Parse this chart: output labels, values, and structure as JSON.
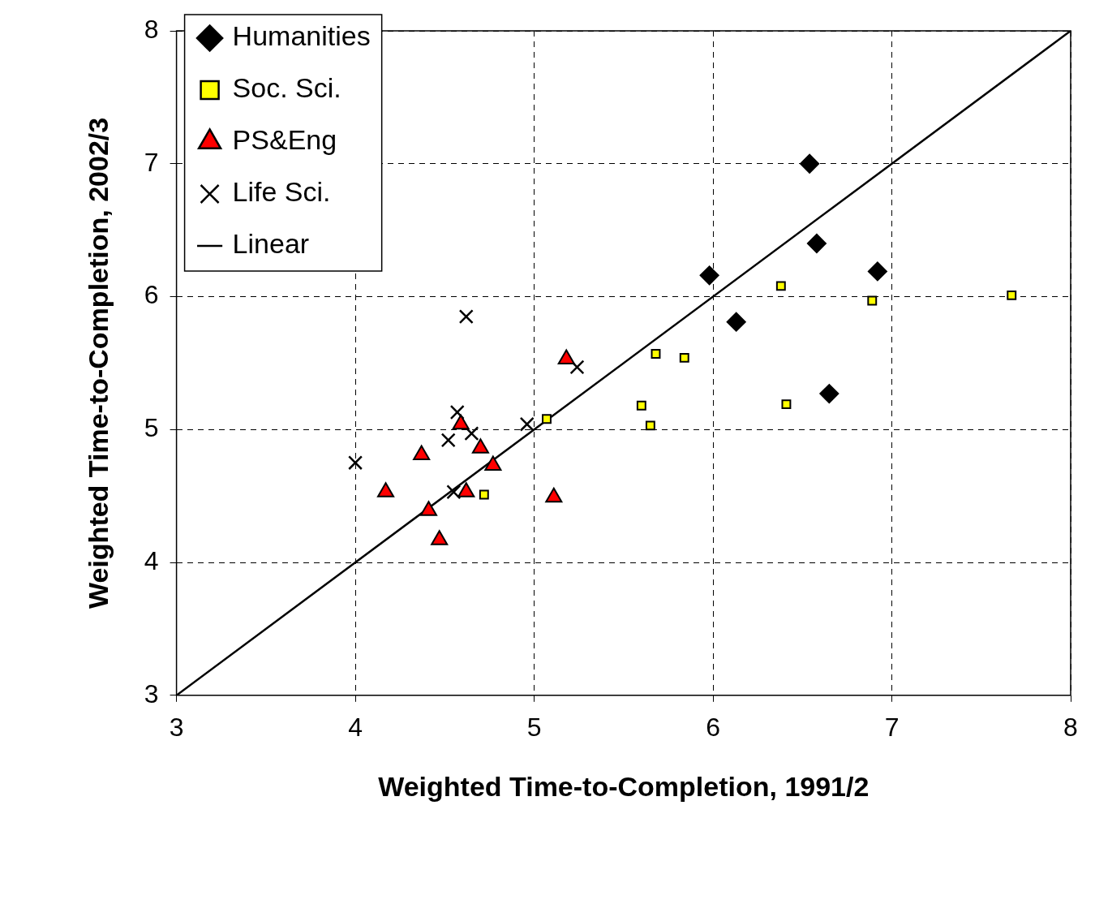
{
  "chart_data": {
    "type": "scatter",
    "xlabel": "Weighted Time-to-Completion, 1991/2",
    "ylabel": "Weighted Time-to-Completion, 2002/3",
    "xlim": [
      3,
      8
    ],
    "ylim": [
      3,
      8
    ],
    "xticks": [
      3,
      4,
      5,
      6,
      7,
      8
    ],
    "yticks": [
      3,
      4,
      5,
      6,
      7,
      8
    ],
    "grid": true,
    "legend": "top left",
    "series": [
      {
        "name": "Humanities",
        "color": "#000000",
        "marker": "diamond",
        "x": [
          5.98,
          6.54,
          6.58,
          6.92,
          6.13,
          6.65
        ],
        "values": [
          6.16,
          7.0,
          6.4,
          6.19,
          5.81,
          5.27
        ]
      },
      {
        "name": "Soc. Sci.",
        "color": "#ffff00",
        "marker": "square",
        "x": [
          6.38,
          6.89,
          7.67,
          5.68,
          5.84,
          5.6,
          6.41,
          5.65,
          5.07,
          4.72
        ],
        "values": [
          6.08,
          5.97,
          6.01,
          5.57,
          5.54,
          5.18,
          5.19,
          5.03,
          5.08,
          4.51
        ]
      },
      {
        "name": "PS&Eng",
        "color": "#ff0000",
        "marker": "triangle",
        "x": [
          5.18,
          4.59,
          4.37,
          4.7,
          4.77,
          4.17,
          4.62,
          4.41,
          4.47,
          5.11
        ],
        "values": [
          5.53,
          5.04,
          4.81,
          4.86,
          4.73,
          4.53,
          4.53,
          4.39,
          4.17,
          4.49
        ]
      },
      {
        "name": "Life Sci.",
        "color": "#000000",
        "marker": "cross",
        "x": [
          4.0,
          4.62,
          5.24,
          4.57,
          4.52,
          4.65,
          4.96,
          4.55
        ],
        "values": [
          4.75,
          5.85,
          5.47,
          5.13,
          4.92,
          4.97,
          5.04,
          4.53
        ]
      },
      {
        "name": "Linear",
        "type": "line",
        "color": "#000000",
        "marker": "none",
        "line_style": "solid",
        "x": [
          3,
          8
        ],
        "values": [
          3,
          8
        ]
      }
    ]
  }
}
